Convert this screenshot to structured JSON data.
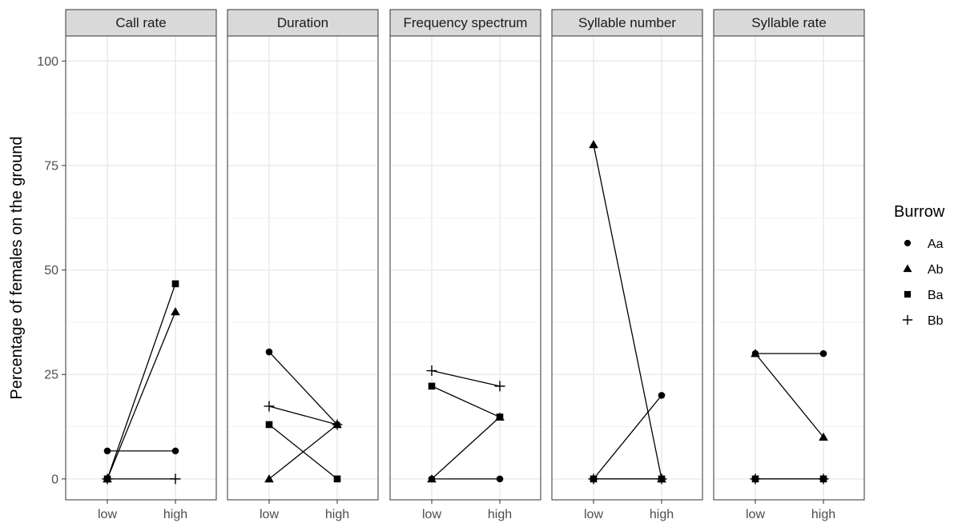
{
  "chart_data": {
    "type": "line",
    "ylabel": "Percentage of females on the ground",
    "xlabel": "",
    "ylim": [
      -5,
      106
    ],
    "yticks": [
      0,
      25,
      50,
      75,
      100
    ],
    "categories": [
      "low",
      "high"
    ],
    "grid": true,
    "legend": {
      "title": "Burrow",
      "placement": "right",
      "entries": [
        {
          "name": "Aa",
          "shape": "circle"
        },
        {
          "name": "Ab",
          "shape": "triangle"
        },
        {
          "name": "Ba",
          "shape": "square"
        },
        {
          "name": "Bb",
          "shape": "plus"
        }
      ]
    },
    "panels": [
      {
        "title": "Call rate",
        "series": [
          {
            "name": "Aa",
            "values": [
              6.7,
              6.7
            ]
          },
          {
            "name": "Ab",
            "values": [
              0,
              40
            ]
          },
          {
            "name": "Ba",
            "values": [
              0,
              46.7
            ]
          },
          {
            "name": "Bb",
            "values": [
              0,
              0
            ]
          }
        ]
      },
      {
        "title": "Duration",
        "series": [
          {
            "name": "Aa",
            "values": [
              30.4,
              13
            ]
          },
          {
            "name": "Ab",
            "values": [
              0,
              13
            ]
          },
          {
            "name": "Ba",
            "values": [
              13,
              0
            ]
          },
          {
            "name": "Bb",
            "values": [
              17.4,
              13
            ]
          }
        ]
      },
      {
        "title": "Frequency spectrum",
        "series": [
          {
            "name": "Aa",
            "values": [
              0,
              0
            ]
          },
          {
            "name": "Ab",
            "values": [
              0,
              14.8
            ]
          },
          {
            "name": "Ba",
            "values": [
              22.2,
              14.8
            ]
          },
          {
            "name": "Bb",
            "values": [
              25.9,
              22.2
            ]
          }
        ]
      },
      {
        "title": "Syllable number",
        "series": [
          {
            "name": "Aa",
            "values": [
              0,
              20
            ]
          },
          {
            "name": "Ab",
            "values": [
              80,
              0
            ]
          },
          {
            "name": "Ba",
            "values": [
              0,
              0
            ]
          },
          {
            "name": "Bb",
            "values": [
              0,
              0
            ]
          }
        ]
      },
      {
        "title": "Syllable rate",
        "series": [
          {
            "name": "Aa",
            "values": [
              30,
              30
            ]
          },
          {
            "name": "Ab",
            "values": [
              30,
              10
            ]
          },
          {
            "name": "Ba",
            "values": [
              0,
              0
            ]
          },
          {
            "name": "Bb",
            "values": [
              0,
              0
            ]
          }
        ]
      }
    ]
  }
}
